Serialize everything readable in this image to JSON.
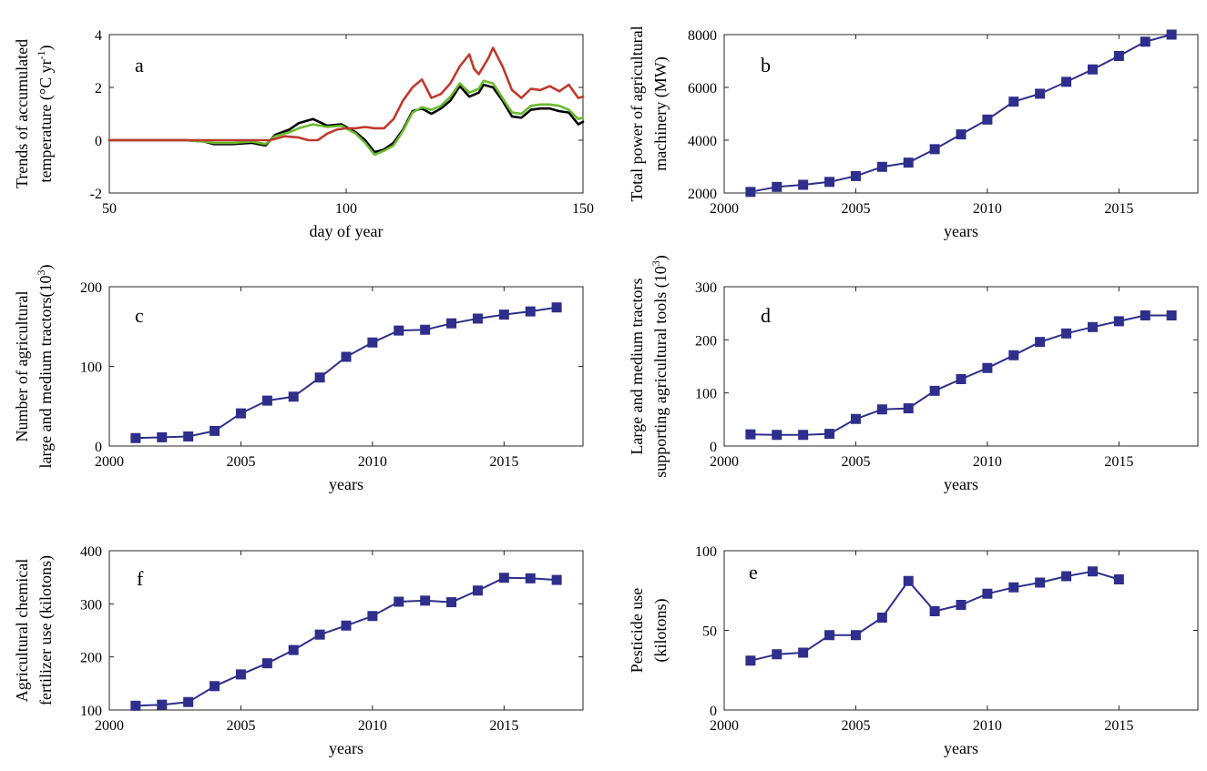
{
  "figure": {
    "background": "#ffffff"
  },
  "chart_data": [
    {
      "panel": "a",
      "type": "line",
      "title": "",
      "xlabel": "day of year",
      "ylabel": [
        "Trends of accumulated",
        "temperature (°C yr",
        "-1",
        ")"
      ],
      "xlim": [
        50,
        150
      ],
      "ylim": [
        -2,
        4
      ],
      "xticks": [
        50,
        100,
        150
      ],
      "yticks": [
        -2,
        0,
        2,
        4
      ],
      "grid": false,
      "legend": "none",
      "series": [
        {
          "color": "#000000",
          "x": [
            50,
            60,
            66,
            70,
            72,
            76,
            80,
            83,
            85,
            88,
            90,
            93,
            96,
            99,
            102,
            104,
            106,
            108,
            110,
            112,
            114,
            116,
            118,
            120,
            122,
            124,
            126,
            128,
            129,
            131,
            133,
            135,
            137,
            139,
            141,
            143,
            145,
            147,
            149,
            150
          ],
          "y": [
            0,
            0,
            0,
            -0.05,
            -0.15,
            -0.15,
            -0.1,
            -0.2,
            0.2,
            0.4,
            0.65,
            0.8,
            0.55,
            0.6,
            0.3,
            0.0,
            -0.45,
            -0.35,
            -0.1,
            0.4,
            1.1,
            1.2,
            1.0,
            1.2,
            1.5,
            2.05,
            1.65,
            1.8,
            2.1,
            2.0,
            1.5,
            0.9,
            0.85,
            1.15,
            1.2,
            1.2,
            1.1,
            1.05,
            0.6,
            0.7
          ]
        },
        {
          "color": "#6aba2d",
          "x": [
            50,
            60,
            66,
            70,
            72,
            76,
            80,
            83,
            85,
            88,
            90,
            93,
            96,
            99,
            102,
            104,
            106,
            108,
            110,
            112,
            114,
            116,
            118,
            120,
            122,
            124,
            126,
            128,
            129,
            131,
            133,
            135,
            137,
            139,
            141,
            143,
            145,
            147,
            149,
            150
          ],
          "y": [
            0,
            0,
            0,
            -0.05,
            -0.1,
            -0.1,
            -0.05,
            -0.15,
            0.15,
            0.3,
            0.45,
            0.6,
            0.5,
            0.55,
            0.25,
            -0.1,
            -0.55,
            -0.4,
            -0.2,
            0.35,
            1.05,
            1.25,
            1.15,
            1.3,
            1.65,
            2.15,
            1.8,
            1.95,
            2.25,
            2.15,
            1.6,
            1.05,
            1.0,
            1.3,
            1.35,
            1.35,
            1.3,
            1.15,
            0.8,
            0.85
          ]
        },
        {
          "color": "#c0392b",
          "x": [
            50,
            60,
            70,
            80,
            84,
            87,
            90,
            92,
            94,
            96,
            98,
            100,
            102,
            104,
            106,
            108,
            110,
            112,
            114,
            116,
            118,
            120,
            122,
            124,
            126,
            127,
            128,
            130,
            131,
            133,
            135,
            137,
            139,
            141,
            143,
            145,
            147,
            149,
            150
          ],
          "y": [
            0,
            0,
            0,
            0,
            0,
            0.15,
            0.1,
            0.0,
            0.0,
            0.25,
            0.4,
            0.45,
            0.45,
            0.5,
            0.45,
            0.45,
            0.8,
            1.5,
            2.0,
            2.3,
            1.6,
            1.75,
            2.15,
            2.8,
            3.25,
            2.7,
            2.5,
            3.1,
            3.5,
            2.8,
            1.9,
            1.6,
            1.95,
            1.9,
            2.05,
            1.85,
            2.1,
            1.6,
            1.65
          ]
        }
      ]
    },
    {
      "panel": "b",
      "type": "line",
      "title": "",
      "xlabel": "years",
      "ylabel": [
        "Total power of agricultural",
        "machinery (MW)"
      ],
      "xlim": [
        2000,
        2018
      ],
      "ylim": [
        2000,
        8000
      ],
      "xticks": [
        2000,
        2005,
        2010,
        2015
      ],
      "yticks": [
        2000,
        4000,
        6000,
        8000
      ],
      "grid": false,
      "legend": "none",
      "series": [
        {
          "color": "#2e2e8c",
          "marker": "square",
          "x": [
            2001,
            2002,
            2003,
            2004,
            2005,
            2006,
            2007,
            2008,
            2009,
            2010,
            2011,
            2012,
            2013,
            2014,
            2015,
            2016,
            2017
          ],
          "y": [
            2040,
            2230,
            2310,
            2420,
            2640,
            2990,
            3150,
            3660,
            4220,
            4780,
            5460,
            5760,
            6210,
            6680,
            7190,
            7730,
            8000
          ]
        }
      ]
    },
    {
      "panel": "c",
      "type": "line",
      "title": "",
      "xlabel": "years",
      "ylabel": [
        "Number of agricultural",
        "large and medium tractors(10",
        "3",
        ")"
      ],
      "xlim": [
        2000,
        2018
      ],
      "ylim": [
        0,
        200
      ],
      "xticks": [
        2000,
        2005,
        2010,
        2015
      ],
      "yticks": [
        0,
        100,
        200
      ],
      "grid": false,
      "legend": "none",
      "series": [
        {
          "color": "#2e2e8c",
          "marker": "square",
          "x": [
            2001,
            2002,
            2003,
            2004,
            2005,
            2006,
            2007,
            2008,
            2009,
            2010,
            2011,
            2012,
            2013,
            2014,
            2015,
            2016,
            2017
          ],
          "y": [
            10,
            11,
            12,
            19,
            41,
            57,
            62,
            86,
            112,
            130,
            145,
            146,
            154,
            160,
            165,
            169,
            174
          ]
        }
      ]
    },
    {
      "panel": "d",
      "type": "line",
      "title": "",
      "xlabel": "years",
      "ylabel": [
        "Large and medium tractors",
        "supporting agricultural tools (10",
        "3",
        ")"
      ],
      "xlim": [
        2000,
        2018
      ],
      "ylim": [
        0,
        300
      ],
      "xticks": [
        2000,
        2005,
        2010,
        2015
      ],
      "yticks": [
        0,
        100,
        200,
        300
      ],
      "grid": false,
      "legend": "none",
      "series": [
        {
          "color": "#2e2e8c",
          "marker": "square",
          "x": [
            2001,
            2002,
            2003,
            2004,
            2005,
            2006,
            2007,
            2008,
            2009,
            2010,
            2011,
            2012,
            2013,
            2014,
            2015,
            2016,
            2017
          ],
          "y": [
            22,
            21,
            21,
            23,
            51,
            69,
            71,
            104,
            126,
            147,
            171,
            196,
            212,
            224,
            235,
            246,
            246
          ]
        }
      ]
    },
    {
      "panel": "f",
      "type": "line",
      "title": "",
      "xlabel": "years",
      "ylabel": [
        "Agricultural chemical",
        "fertilizer use (kilotons)"
      ],
      "xlim": [
        2000,
        2018
      ],
      "ylim": [
        100,
        400
      ],
      "xticks": [
        2000,
        2005,
        2010,
        2015
      ],
      "yticks": [
        100,
        200,
        300,
        400
      ],
      "grid": false,
      "legend": "none",
      "series": [
        {
          "color": "#2e2e8c",
          "marker": "square",
          "x": [
            2001,
            2002,
            2003,
            2004,
            2005,
            2006,
            2007,
            2008,
            2009,
            2010,
            2011,
            2012,
            2013,
            2014,
            2015,
            2016,
            2017
          ],
          "y": [
            108,
            110,
            115,
            145,
            167,
            188,
            213,
            242,
            259,
            277,
            304,
            306,
            303,
            325,
            349,
            348,
            345
          ]
        }
      ]
    },
    {
      "panel": "e",
      "type": "line",
      "title": "",
      "xlabel": "years",
      "ylabel": [
        "Pesticide use",
        "(kilotons)"
      ],
      "xlim": [
        2000,
        2018
      ],
      "ylim": [
        0,
        100
      ],
      "xticks": [
        2000,
        2005,
        2010,
        2015
      ],
      "yticks": [
        0,
        50,
        100
      ],
      "grid": false,
      "legend": "none",
      "series": [
        {
          "color": "#2e2e8c",
          "marker": "square",
          "x": [
            2001,
            2002,
            2003,
            2004,
            2005,
            2006,
            2007,
            2008,
            2009,
            2010,
            2011,
            2012,
            2013,
            2014,
            2015
          ],
          "y": [
            31,
            35,
            36,
            47,
            47,
            58,
            81,
            62,
            66,
            73,
            77,
            80,
            84,
            87,
            82
          ]
        }
      ]
    }
  ]
}
